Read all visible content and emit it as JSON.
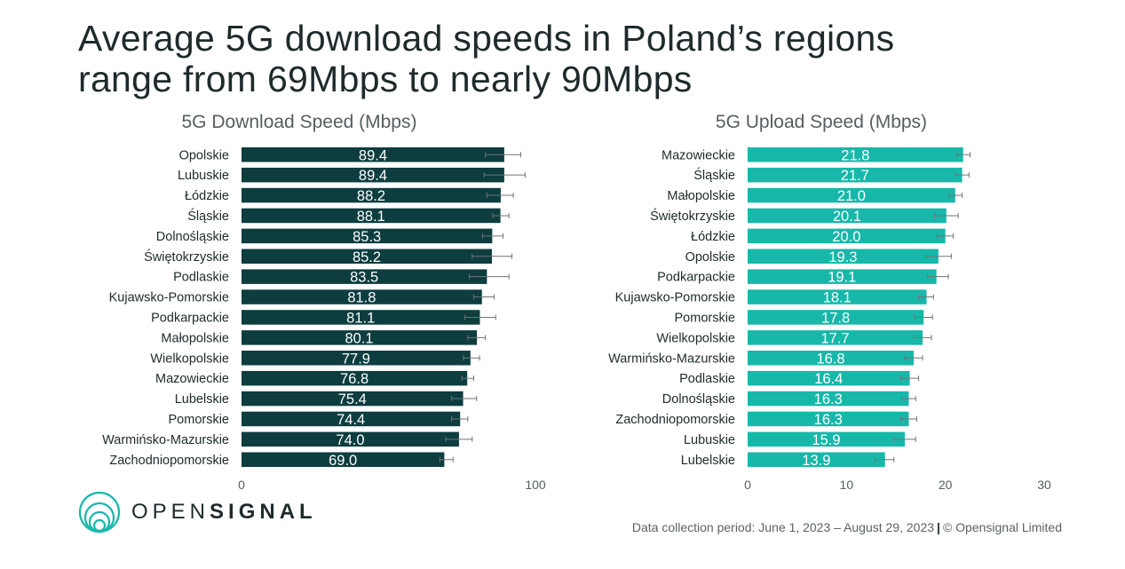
{
  "title": {
    "line1": "Average 5G download speeds in Poland’s regions",
    "line2": "range from 69Mbps to nearly 90Mbps"
  },
  "brand": {
    "name_light": "OPEN",
    "name_bold": "SIGNAL",
    "logo_icon": "concentric-circles-icon"
  },
  "footer": {
    "period": "Data collection period: June 1, 2023 – August 29, 2023",
    "separator": "|",
    "copyright": "© Opensignal Limited"
  },
  "colors": {
    "download": "#0d3d3f",
    "upload": "#17b8a9",
    "text": "#1e2a2b",
    "subtle": "#555e5f"
  },
  "chart_data": [
    {
      "type": "bar",
      "orientation": "horizontal",
      "title": "5G Download Speed (Mbps)",
      "categories": [
        "Opolskie",
        "Lubuskie",
        "Łódzkie",
        "Śląskie",
        "Dolnośląskie",
        "Świętokrzyskie",
        "Podlaskie",
        "Kujawsko-Pomorskie",
        "Podkarpackie",
        "Małopolskie",
        "Wielkopolskie",
        "Mazowieckie",
        "Lubelskie",
        "Pomorskie",
        "Warmińsko-Mazurskie",
        "Zachodniopomorskie"
      ],
      "values": [
        89.4,
        89.4,
        88.2,
        88.1,
        85.3,
        85.2,
        83.5,
        81.8,
        81.1,
        80.1,
        77.9,
        76.8,
        75.4,
        74.4,
        74.0,
        69.0
      ],
      "error_low": [
        83.0,
        82.5,
        83.5,
        85.5,
        82.0,
        78.5,
        77.5,
        79.0,
        76.0,
        77.0,
        75.5,
        75.0,
        71.5,
        71.5,
        69.5,
        67.5
      ],
      "error_high": [
        95.0,
        96.5,
        92.5,
        91.0,
        89.0,
        92.0,
        91.0,
        86.0,
        86.5,
        83.0,
        81.0,
        79.0,
        80.0,
        77.0,
        78.5,
        72.0
      ],
      "xlim": [
        0,
        100
      ],
      "xticks": [
        "0",
        "100"
      ],
      "grid": false
    },
    {
      "type": "bar",
      "orientation": "horizontal",
      "title": "5G Upload Speed (Mbps)",
      "categories": [
        "Mazowieckie",
        "Śląskie",
        "Małopolskie",
        "Świętokrzyskie",
        "Łódzkie",
        "Opolskie",
        "Podkarpackie",
        "Kujawsko-Pomorskie",
        "Pomorskie",
        "Wielkopolskie",
        "Warmińsko-Mazurskie",
        "Podlaskie",
        "Dolnośląskie",
        "Zachodniopomorskie",
        "Lubuskie",
        "Lubelskie"
      ],
      "values": [
        21.8,
        21.7,
        21.0,
        20.1,
        20.0,
        19.3,
        19.1,
        18.1,
        17.8,
        17.7,
        16.8,
        16.4,
        16.3,
        16.3,
        15.9,
        13.9
      ],
      "error_low": [
        21.2,
        21.0,
        20.4,
        18.9,
        19.2,
        18.0,
        18.2,
        17.3,
        16.9,
        16.8,
        15.9,
        15.5,
        15.6,
        15.5,
        14.8,
        12.9
      ],
      "error_high": [
        22.5,
        22.4,
        21.7,
        21.3,
        20.8,
        20.6,
        20.3,
        18.8,
        18.7,
        18.6,
        17.7,
        17.3,
        17.0,
        17.1,
        17.0,
        14.8
      ],
      "xlim": [
        0,
        30
      ],
      "xticks": [
        "0",
        "10",
        "20",
        "30"
      ],
      "grid": false
    }
  ]
}
